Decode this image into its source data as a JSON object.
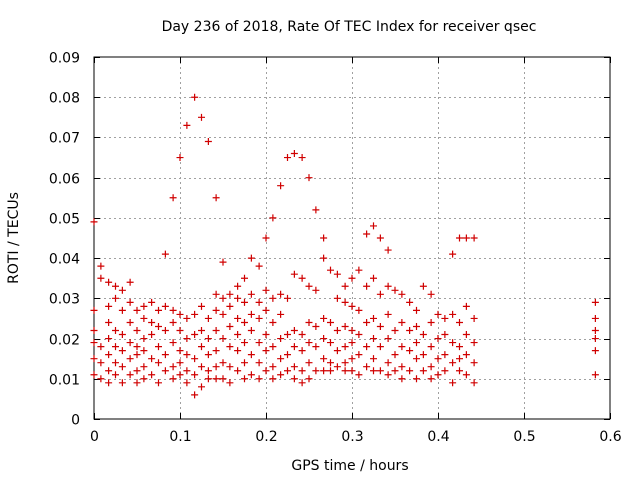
{
  "chart_data": {
    "type": "scatter",
    "title": "Day 236 of 2018, Rate Of TEC Index for receiver qsec",
    "xlabel": "GPS time / hours",
    "ylabel": "ROTI / TECUs",
    "xlim": [
      0,
      0.6
    ],
    "ylim": [
      0,
      0.09
    ],
    "x_ticks": [
      0,
      0.1,
      0.2,
      0.3,
      0.4,
      0.5,
      0.6
    ],
    "x_tick_labels": [
      "0",
      "0.1",
      "0.2",
      "0.3",
      "0.4",
      "0.5",
      "0.6"
    ],
    "y_ticks": [
      0,
      0.01,
      0.02,
      0.03,
      0.04,
      0.05,
      0.06,
      0.07,
      0.08,
      0.09
    ],
    "y_tick_labels": [
      "0",
      "0.01",
      "0.02",
      "0.03",
      "0.04",
      "0.05",
      "0.06",
      "0.07",
      "0.08",
      "0.09"
    ],
    "grid": true,
    "marker": "+",
    "marker_color": "#d00000",
    "series": [
      {
        "name": "ROTI",
        "points": [
          [
            0.0,
            0.049
          ],
          [
            0.0,
            0.027
          ],
          [
            0.0,
            0.022
          ],
          [
            0.0,
            0.019
          ],
          [
            0.0,
            0.015
          ],
          [
            0.0,
            0.011
          ],
          [
            0.008,
            0.038
          ],
          [
            0.008,
            0.035
          ],
          [
            0.008,
            0.018
          ],
          [
            0.008,
            0.014
          ],
          [
            0.008,
            0.01
          ],
          [
            0.017,
            0.034
          ],
          [
            0.017,
            0.028
          ],
          [
            0.017,
            0.024
          ],
          [
            0.017,
            0.02
          ],
          [
            0.017,
            0.016
          ],
          [
            0.017,
            0.012
          ],
          [
            0.017,
            0.009
          ],
          [
            0.025,
            0.033
          ],
          [
            0.025,
            0.03
          ],
          [
            0.025,
            0.022
          ],
          [
            0.025,
            0.018
          ],
          [
            0.025,
            0.014
          ],
          [
            0.025,
            0.011
          ],
          [
            0.033,
            0.032
          ],
          [
            0.033,
            0.027
          ],
          [
            0.033,
            0.021
          ],
          [
            0.033,
            0.017
          ],
          [
            0.033,
            0.013
          ],
          [
            0.033,
            0.009
          ],
          [
            0.042,
            0.034
          ],
          [
            0.042,
            0.029
          ],
          [
            0.042,
            0.024
          ],
          [
            0.042,
            0.019
          ],
          [
            0.042,
            0.015
          ],
          [
            0.042,
            0.011
          ],
          [
            0.05,
            0.027
          ],
          [
            0.05,
            0.022
          ],
          [
            0.05,
            0.018
          ],
          [
            0.05,
            0.016
          ],
          [
            0.05,
            0.012
          ],
          [
            0.05,
            0.009
          ],
          [
            0.058,
            0.028
          ],
          [
            0.058,
            0.025
          ],
          [
            0.058,
            0.02
          ],
          [
            0.058,
            0.017
          ],
          [
            0.058,
            0.013
          ],
          [
            0.058,
            0.01
          ],
          [
            0.067,
            0.029
          ],
          [
            0.067,
            0.024
          ],
          [
            0.067,
            0.021
          ],
          [
            0.067,
            0.015
          ],
          [
            0.067,
            0.011
          ],
          [
            0.075,
            0.027
          ],
          [
            0.075,
            0.023
          ],
          [
            0.075,
            0.018
          ],
          [
            0.075,
            0.014
          ],
          [
            0.075,
            0.009
          ],
          [
            0.083,
            0.041
          ],
          [
            0.083,
            0.028
          ],
          [
            0.083,
            0.022
          ],
          [
            0.083,
            0.016
          ],
          [
            0.083,
            0.012
          ],
          [
            0.092,
            0.055
          ],
          [
            0.092,
            0.027
          ],
          [
            0.092,
            0.024
          ],
          [
            0.092,
            0.019
          ],
          [
            0.092,
            0.013
          ],
          [
            0.092,
            0.01
          ],
          [
            0.1,
            0.065
          ],
          [
            0.1,
            0.026
          ],
          [
            0.1,
            0.022
          ],
          [
            0.1,
            0.017
          ],
          [
            0.1,
            0.014
          ],
          [
            0.1,
            0.011
          ],
          [
            0.108,
            0.073
          ],
          [
            0.108,
            0.025
          ],
          [
            0.108,
            0.02
          ],
          [
            0.108,
            0.016
          ],
          [
            0.108,
            0.012
          ],
          [
            0.108,
            0.009
          ],
          [
            0.117,
            0.08
          ],
          [
            0.117,
            0.026
          ],
          [
            0.117,
            0.021
          ],
          [
            0.117,
            0.015
          ],
          [
            0.117,
            0.011
          ],
          [
            0.117,
            0.006
          ],
          [
            0.125,
            0.075
          ],
          [
            0.125,
            0.028
          ],
          [
            0.125,
            0.022
          ],
          [
            0.125,
            0.018
          ],
          [
            0.125,
            0.013
          ],
          [
            0.125,
            0.008
          ],
          [
            0.133,
            0.069
          ],
          [
            0.133,
            0.025
          ],
          [
            0.133,
            0.02
          ],
          [
            0.133,
            0.016
          ],
          [
            0.133,
            0.012
          ],
          [
            0.133,
            0.01
          ],
          [
            0.142,
            0.055
          ],
          [
            0.142,
            0.031
          ],
          [
            0.142,
            0.027
          ],
          [
            0.142,
            0.022
          ],
          [
            0.142,
            0.017
          ],
          [
            0.142,
            0.013
          ],
          [
            0.142,
            0.01
          ],
          [
            0.15,
            0.039
          ],
          [
            0.15,
            0.03
          ],
          [
            0.15,
            0.026
          ],
          [
            0.15,
            0.02
          ],
          [
            0.15,
            0.014
          ],
          [
            0.15,
            0.01
          ],
          [
            0.158,
            0.031
          ],
          [
            0.158,
            0.028
          ],
          [
            0.158,
            0.023
          ],
          [
            0.158,
            0.018
          ],
          [
            0.158,
            0.013
          ],
          [
            0.158,
            0.009
          ],
          [
            0.167,
            0.033
          ],
          [
            0.167,
            0.03
          ],
          [
            0.167,
            0.025
          ],
          [
            0.167,
            0.021
          ],
          [
            0.167,
            0.017
          ],
          [
            0.167,
            0.012
          ],
          [
            0.175,
            0.035
          ],
          [
            0.175,
            0.029
          ],
          [
            0.175,
            0.024
          ],
          [
            0.175,
            0.019
          ],
          [
            0.175,
            0.014
          ],
          [
            0.175,
            0.01
          ],
          [
            0.183,
            0.04
          ],
          [
            0.183,
            0.031
          ],
          [
            0.183,
            0.026
          ],
          [
            0.183,
            0.022
          ],
          [
            0.183,
            0.016
          ],
          [
            0.183,
            0.011
          ],
          [
            0.192,
            0.038
          ],
          [
            0.192,
            0.029
          ],
          [
            0.192,
            0.025
          ],
          [
            0.192,
            0.019
          ],
          [
            0.192,
            0.014
          ],
          [
            0.192,
            0.01
          ],
          [
            0.2,
            0.045
          ],
          [
            0.2,
            0.032
          ],
          [
            0.2,
            0.027
          ],
          [
            0.2,
            0.021
          ],
          [
            0.2,
            0.017
          ],
          [
            0.2,
            0.012
          ],
          [
            0.208,
            0.05
          ],
          [
            0.208,
            0.03
          ],
          [
            0.208,
            0.024
          ],
          [
            0.208,
            0.018
          ],
          [
            0.208,
            0.013
          ],
          [
            0.208,
            0.01
          ],
          [
            0.217,
            0.058
          ],
          [
            0.217,
            0.031
          ],
          [
            0.217,
            0.026
          ],
          [
            0.217,
            0.02
          ],
          [
            0.217,
            0.015
          ],
          [
            0.217,
            0.011
          ],
          [
            0.225,
            0.065
          ],
          [
            0.225,
            0.03
          ],
          [
            0.225,
            0.021
          ],
          [
            0.225,
            0.016
          ],
          [
            0.225,
            0.012
          ],
          [
            0.233,
            0.066
          ],
          [
            0.233,
            0.036
          ],
          [
            0.233,
            0.022
          ],
          [
            0.233,
            0.018
          ],
          [
            0.233,
            0.013
          ],
          [
            0.233,
            0.01
          ],
          [
            0.242,
            0.065
          ],
          [
            0.242,
            0.035
          ],
          [
            0.242,
            0.021
          ],
          [
            0.242,
            0.017
          ],
          [
            0.242,
            0.012
          ],
          [
            0.242,
            0.009
          ],
          [
            0.25,
            0.06
          ],
          [
            0.25,
            0.033
          ],
          [
            0.25,
            0.024
          ],
          [
            0.25,
            0.019
          ],
          [
            0.25,
            0.014
          ],
          [
            0.25,
            0.01
          ],
          [
            0.258,
            0.052
          ],
          [
            0.258,
            0.032
          ],
          [
            0.258,
            0.023
          ],
          [
            0.258,
            0.018
          ],
          [
            0.258,
            0.012
          ],
          [
            0.267,
            0.045
          ],
          [
            0.267,
            0.04
          ],
          [
            0.267,
            0.025
          ],
          [
            0.267,
            0.02
          ],
          [
            0.267,
            0.015
          ],
          [
            0.267,
            0.012
          ],
          [
            0.275,
            0.037
          ],
          [
            0.275,
            0.024
          ],
          [
            0.275,
            0.019
          ],
          [
            0.275,
            0.014
          ],
          [
            0.275,
            0.012
          ],
          [
            0.283,
            0.036
          ],
          [
            0.283,
            0.03
          ],
          [
            0.283,
            0.022
          ],
          [
            0.283,
            0.017
          ],
          [
            0.283,
            0.013
          ],
          [
            0.292,
            0.033
          ],
          [
            0.292,
            0.029
          ],
          [
            0.292,
            0.023
          ],
          [
            0.292,
            0.018
          ],
          [
            0.292,
            0.014
          ],
          [
            0.292,
            0.012
          ],
          [
            0.3,
            0.035
          ],
          [
            0.3,
            0.028
          ],
          [
            0.3,
            0.022
          ],
          [
            0.3,
            0.019
          ],
          [
            0.3,
            0.015
          ],
          [
            0.3,
            0.012
          ],
          [
            0.308,
            0.037
          ],
          [
            0.308,
            0.027
          ],
          [
            0.308,
            0.021
          ],
          [
            0.308,
            0.016
          ],
          [
            0.308,
            0.011
          ],
          [
            0.317,
            0.046
          ],
          [
            0.317,
            0.033
          ],
          [
            0.317,
            0.024
          ],
          [
            0.317,
            0.018
          ],
          [
            0.317,
            0.013
          ],
          [
            0.325,
            0.048
          ],
          [
            0.325,
            0.035
          ],
          [
            0.325,
            0.025
          ],
          [
            0.325,
            0.02
          ],
          [
            0.325,
            0.015
          ],
          [
            0.325,
            0.012
          ],
          [
            0.333,
            0.045
          ],
          [
            0.333,
            0.031
          ],
          [
            0.333,
            0.023
          ],
          [
            0.333,
            0.018
          ],
          [
            0.333,
            0.012
          ],
          [
            0.342,
            0.042
          ],
          [
            0.342,
            0.033
          ],
          [
            0.342,
            0.026
          ],
          [
            0.342,
            0.02
          ],
          [
            0.342,
            0.014
          ],
          [
            0.342,
            0.011
          ],
          [
            0.35,
            0.032
          ],
          [
            0.35,
            0.022
          ],
          [
            0.35,
            0.016
          ],
          [
            0.35,
            0.012
          ],
          [
            0.358,
            0.031
          ],
          [
            0.358,
            0.024
          ],
          [
            0.358,
            0.018
          ],
          [
            0.358,
            0.013
          ],
          [
            0.358,
            0.01
          ],
          [
            0.367,
            0.029
          ],
          [
            0.367,
            0.022
          ],
          [
            0.367,
            0.017
          ],
          [
            0.367,
            0.012
          ],
          [
            0.375,
            0.027
          ],
          [
            0.375,
            0.023
          ],
          [
            0.375,
            0.019
          ],
          [
            0.375,
            0.015
          ],
          [
            0.375,
            0.01
          ],
          [
            0.383,
            0.033
          ],
          [
            0.383,
            0.021
          ],
          [
            0.383,
            0.016
          ],
          [
            0.383,
            0.012
          ],
          [
            0.392,
            0.031
          ],
          [
            0.392,
            0.024
          ],
          [
            0.392,
            0.018
          ],
          [
            0.392,
            0.013
          ],
          [
            0.392,
            0.01
          ],
          [
            0.4,
            0.026
          ],
          [
            0.4,
            0.02
          ],
          [
            0.4,
            0.015
          ],
          [
            0.4,
            0.011
          ],
          [
            0.408,
            0.025
          ],
          [
            0.408,
            0.021
          ],
          [
            0.408,
            0.016
          ],
          [
            0.408,
            0.012
          ],
          [
            0.417,
            0.041
          ],
          [
            0.417,
            0.026
          ],
          [
            0.417,
            0.019
          ],
          [
            0.417,
            0.014
          ],
          [
            0.417,
            0.009
          ],
          [
            0.425,
            0.045
          ],
          [
            0.425,
            0.024
          ],
          [
            0.425,
            0.018
          ],
          [
            0.425,
            0.015
          ],
          [
            0.425,
            0.012
          ],
          [
            0.433,
            0.045
          ],
          [
            0.433,
            0.028
          ],
          [
            0.433,
            0.021
          ],
          [
            0.433,
            0.016
          ],
          [
            0.433,
            0.011
          ],
          [
            0.442,
            0.045
          ],
          [
            0.442,
            0.025
          ],
          [
            0.442,
            0.019
          ],
          [
            0.442,
            0.014
          ],
          [
            0.442,
            0.009
          ],
          [
            0.583,
            0.029
          ],
          [
            0.583,
            0.025
          ],
          [
            0.583,
            0.022
          ],
          [
            0.583,
            0.02
          ],
          [
            0.583,
            0.017
          ],
          [
            0.583,
            0.011
          ]
        ]
      }
    ]
  }
}
